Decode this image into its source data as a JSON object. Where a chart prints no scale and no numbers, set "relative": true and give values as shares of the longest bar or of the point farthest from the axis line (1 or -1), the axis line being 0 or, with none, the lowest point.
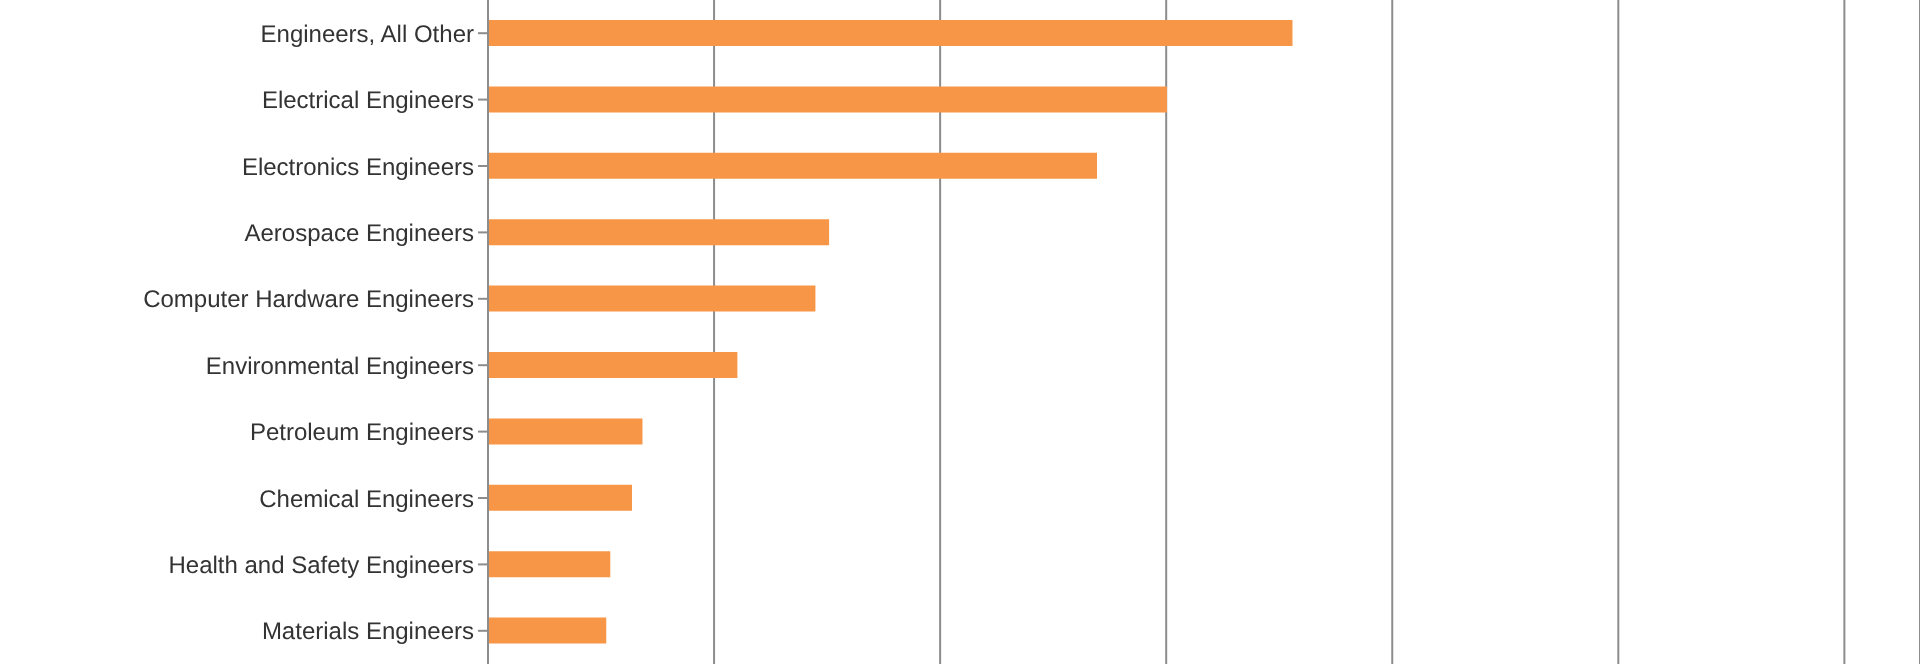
{
  "chart_data": {
    "type": "bar",
    "orientation": "horizontal",
    "relative": true,
    "grid": "x",
    "color": "#f79646",
    "categories": [
      "Engineers, All Other",
      "Electrical Engineers",
      "Electronics Engineers",
      "Aerospace Engineers",
      "Computer Hardware Engineers",
      "Environmental Engineers",
      "Petroleum Engineers",
      "Chemical Engineers",
      "Health and Safety Engineers",
      "Materials Engineers"
    ],
    "values": [
      1,
      0.844,
      0.757,
      0.424,
      0.407,
      0.31,
      0.192,
      0.179,
      0.152,
      0.147
    ]
  }
}
